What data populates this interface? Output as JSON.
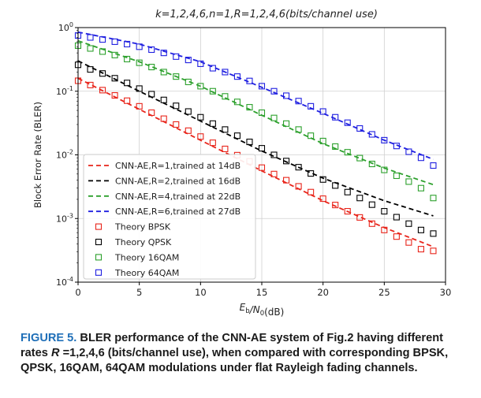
{
  "chart_data": {
    "type": "line",
    "title": "k=1,2,4,6,n=1,R=1,2,4,6(bits/channel use)",
    "xlabel": "E_b/N_0(dB)",
    "ylabel": "Block Error Rate (BLER)",
    "xlim": [
      0,
      30
    ],
    "ylim": [
      0.0001,
      1
    ],
    "yscale": "log",
    "xticks": [
      0,
      5,
      10,
      15,
      20,
      25,
      30
    ],
    "xtick_labels": [
      "0",
      "5",
      "10",
      "15",
      "20",
      "25",
      "30"
    ],
    "yticks": [
      1,
      0.1,
      0.01,
      0.001,
      0.0001
    ],
    "ytick_labels": [
      "10^0",
      "10^-1",
      "10^-2",
      "10^-3",
      "10^-4"
    ],
    "grid": true,
    "legend_position": "lower-left",
    "series": [
      {
        "name": "CNN-AE,R=1,trained at 14dB",
        "style": "dashed",
        "color": "#e8241a",
        "x": [
          0,
          5,
          10,
          15,
          20,
          25,
          29
        ],
        "y": [
          0.16,
          0.052,
          0.017,
          0.0056,
          0.0019,
          0.00072,
          0.00036
        ]
      },
      {
        "name": "CNN-AE,R=2,trained at 16dB",
        "style": "dashed",
        "color": "#000000",
        "x": [
          0,
          5,
          10,
          15,
          20,
          25,
          29
        ],
        "y": [
          0.3,
          0.1,
          0.034,
          0.0115,
          0.0043,
          0.0019,
          0.0011
        ]
      },
      {
        "name": "CNN-AE,R=4,trained at 22dB",
        "style": "dashed",
        "color": "#2ca02c",
        "x": [
          0,
          5,
          10,
          15,
          20,
          25,
          29
        ],
        "y": [
          0.62,
          0.29,
          0.12,
          0.042,
          0.015,
          0.0062,
          0.0034
        ]
      },
      {
        "name": "CNN-AE,R=6,trained at 27dB",
        "style": "dashed",
        "color": "#1f1fe0",
        "x": [
          0,
          5,
          10,
          15,
          20,
          25,
          29
        ],
        "y": [
          0.85,
          0.55,
          0.29,
          0.115,
          0.045,
          0.017,
          0.0085
        ]
      },
      {
        "name": "Theory BPSK",
        "style": "square",
        "color": "#e8241a",
        "x": [
          0,
          1,
          2,
          3,
          4,
          5,
          6,
          7,
          8,
          9,
          10,
          11,
          12,
          13,
          14,
          15,
          16,
          17,
          18,
          19,
          20,
          21,
          22,
          23,
          24,
          25,
          26,
          27,
          28,
          29
        ],
        "y": [
          0.146,
          0.125,
          0.104,
          0.086,
          0.071,
          0.058,
          0.046,
          0.037,
          0.03,
          0.024,
          0.0194,
          0.0155,
          0.0124,
          0.0099,
          0.0079,
          0.0063,
          0.005,
          0.004,
          0.0032,
          0.0026,
          0.00205,
          0.00163,
          0.0013,
          0.00104,
          0.00083,
          0.00066,
          0.00052,
          0.00042,
          0.00033,
          0.00031
        ]
      },
      {
        "name": "Theory QPSK",
        "style": "square",
        "color": "#000000",
        "x": [
          0,
          1,
          2,
          3,
          4,
          5,
          6,
          7,
          8,
          9,
          10,
          11,
          12,
          13,
          14,
          15,
          16,
          17,
          18,
          19,
          20,
          21,
          22,
          23,
          24,
          25,
          26,
          27,
          28,
          29
        ],
        "y": [
          0.26,
          0.22,
          0.19,
          0.16,
          0.135,
          0.11,
          0.09,
          0.073,
          0.059,
          0.048,
          0.039,
          0.031,
          0.025,
          0.02,
          0.016,
          0.0127,
          0.01,
          0.008,
          0.0064,
          0.0051,
          0.0041,
          0.0033,
          0.0026,
          0.0021,
          0.00165,
          0.0013,
          0.00105,
          0.00083,
          0.00066,
          0.00058
        ]
      },
      {
        "name": "Theory 16QAM",
        "style": "square",
        "color": "#2ca02c",
        "x": [
          0,
          1,
          2,
          3,
          4,
          5,
          6,
          7,
          8,
          9,
          10,
          11,
          12,
          13,
          14,
          15,
          16,
          17,
          18,
          19,
          20,
          21,
          22,
          23,
          24,
          25,
          26,
          27,
          28,
          29
        ],
        "y": [
          0.52,
          0.47,
          0.42,
          0.37,
          0.32,
          0.28,
          0.24,
          0.2,
          0.17,
          0.14,
          0.12,
          0.1,
          0.083,
          0.068,
          0.056,
          0.046,
          0.038,
          0.031,
          0.025,
          0.02,
          0.0165,
          0.0135,
          0.011,
          0.0089,
          0.0072,
          0.0058,
          0.0047,
          0.0038,
          0.003,
          0.0021
        ]
      },
      {
        "name": "Theory 64QAM",
        "style": "square",
        "color": "#1f1fe0",
        "x": [
          0,
          1,
          2,
          3,
          4,
          5,
          6,
          7,
          8,
          9,
          10,
          11,
          12,
          13,
          14,
          15,
          16,
          17,
          18,
          19,
          20,
          21,
          22,
          23,
          24,
          25,
          26,
          27,
          28,
          29
        ],
        "y": [
          0.75,
          0.7,
          0.65,
          0.6,
          0.55,
          0.5,
          0.45,
          0.4,
          0.35,
          0.31,
          0.27,
          0.23,
          0.2,
          0.17,
          0.145,
          0.12,
          0.1,
          0.085,
          0.07,
          0.058,
          0.048,
          0.039,
          0.032,
          0.026,
          0.021,
          0.017,
          0.0138,
          0.0112,
          0.009,
          0.0068
        ]
      }
    ]
  },
  "caption": {
    "figure_label": "FIGURE 5.",
    "text_before_r": "BLER performance of the CNN-AE system of Fig.2 having different rates",
    "r_symbol": "R",
    "text_after_r": "=1,2,4,6 (bits/channel use), when compared with corresponding BPSK, QPSK, 16QAM, 64QAM modulations under flat Rayleigh fading channels."
  }
}
